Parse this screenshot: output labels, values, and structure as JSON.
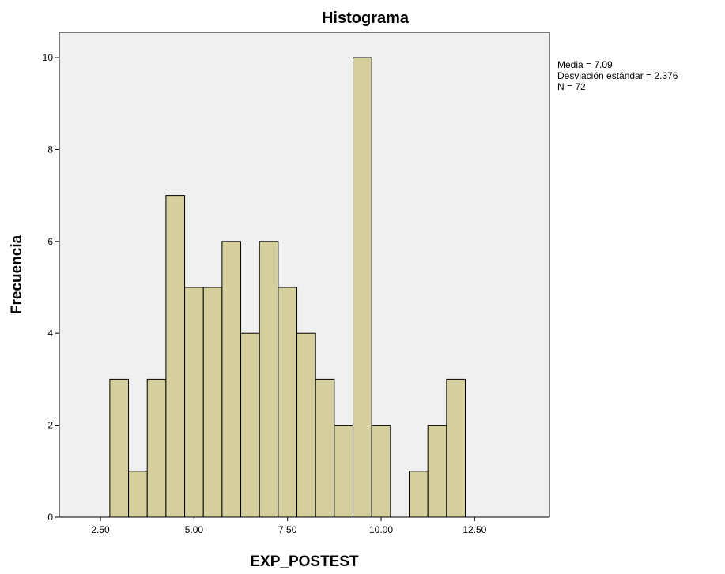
{
  "chart_data": {
    "type": "bar",
    "title": "Histograma",
    "xlabel": "EXP_POSTEST",
    "ylabel": "Frecuencia",
    "xlim": [
      1.4,
      14.5
    ],
    "ylim": [
      0,
      10.55
    ],
    "bin_width": 0.5,
    "bins": [
      {
        "center": 3.0,
        "count": 3
      },
      {
        "center": 3.5,
        "count": 1
      },
      {
        "center": 4.0,
        "count": 3
      },
      {
        "center": 4.5,
        "count": 7
      },
      {
        "center": 5.0,
        "count": 5
      },
      {
        "center": 5.5,
        "count": 5
      },
      {
        "center": 6.0,
        "count": 6
      },
      {
        "center": 6.5,
        "count": 4
      },
      {
        "center": 7.0,
        "count": 6
      },
      {
        "center": 7.5,
        "count": 5
      },
      {
        "center": 8.0,
        "count": 4
      },
      {
        "center": 8.5,
        "count": 3
      },
      {
        "center": 9.0,
        "count": 2
      },
      {
        "center": 9.5,
        "count": 10
      },
      {
        "center": 10.0,
        "count": 2
      },
      {
        "center": 11.0,
        "count": 1
      },
      {
        "center": 11.5,
        "count": 2
      },
      {
        "center": 12.0,
        "count": 3
      }
    ],
    "x_ticks": [
      {
        "value": 2.5,
        "label": "2.50"
      },
      {
        "value": 5.0,
        "label": "5.00"
      },
      {
        "value": 7.5,
        "label": "7.50"
      },
      {
        "value": 10.0,
        "label": "10.00"
      },
      {
        "value": 12.5,
        "label": "12.50"
      }
    ],
    "y_ticks": [
      {
        "value": 0,
        "label": "0"
      },
      {
        "value": 2,
        "label": "2"
      },
      {
        "value": 4,
        "label": "4"
      },
      {
        "value": 6,
        "label": "6"
      },
      {
        "value": 8,
        "label": "8"
      },
      {
        "value": 10,
        "label": "10"
      }
    ],
    "stats": [
      "Media = 7.09",
      "Desviación estándar = 2.376",
      "N = 72"
    ],
    "stats_position": "top-right",
    "grid": false,
    "colors": {
      "bar_fill": "#d5cf9e",
      "bar_stroke": "#000000",
      "plot_background": "#f0f0f0",
      "page_background": "#ffffff"
    }
  }
}
